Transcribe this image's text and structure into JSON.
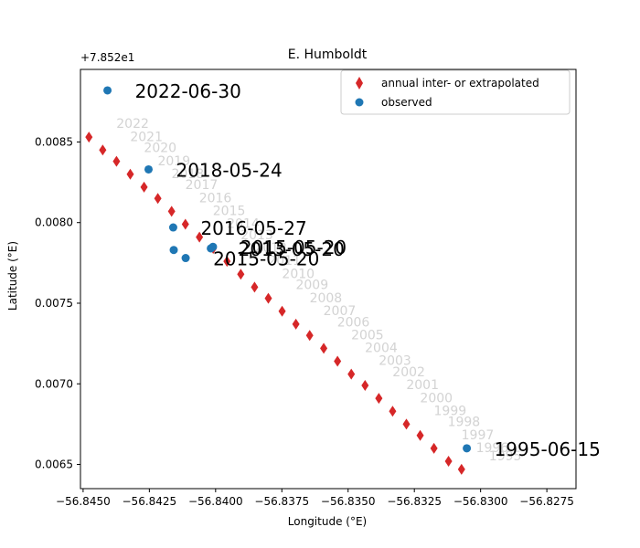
{
  "chart_data": {
    "type": "scatter",
    "title": "E. Humboldt",
    "xlabel": "Longitude (°E)",
    "ylabel": "Latitude (°E)",
    "y_offset_label": "+7.852e1",
    "xlim": [
      -56.8451,
      -56.8264
    ],
    "ylim": [
      0.00635,
      0.00895
    ],
    "xticks": [
      "−56.8450",
      "−56.8425",
      "−56.8400",
      "−56.8375",
      "−56.8350",
      "−56.8325",
      "−56.8300",
      "−56.8275"
    ],
    "xtick_values": [
      -56.845,
      -56.8425,
      -56.84,
      -56.8375,
      -56.835,
      -56.8325,
      -56.83,
      -56.8275
    ],
    "yticks": [
      "0.0065",
      "0.0070",
      "0.0075",
      "0.0080",
      "0.0085"
    ],
    "ytick_values": [
      0.0065,
      0.007,
      0.0075,
      0.008,
      0.0085
    ],
    "grid": false,
    "legend_position": "top-right",
    "series": [
      {
        "name": "annual inter- or extrapolated",
        "marker": "diamond",
        "color": "#d62728",
        "points": [
          {
            "year": "1995",
            "x": -56.83072,
            "y": 0.00647
          },
          {
            "year": "1996",
            "x": -56.83121,
            "y": 0.00652
          },
          {
            "year": "1997",
            "x": -56.83176,
            "y": 0.0066
          },
          {
            "year": "1998",
            "x": -56.83228,
            "y": 0.00668
          },
          {
            "year": "1999",
            "x": -56.8328,
            "y": 0.00675
          },
          {
            "year": "2000",
            "x": -56.83332,
            "y": 0.00683
          },
          {
            "year": "2001",
            "x": -56.83384,
            "y": 0.00691
          },
          {
            "year": "2002",
            "x": -56.83436,
            "y": 0.00699
          },
          {
            "year": "2003",
            "x": -56.83488,
            "y": 0.00706
          },
          {
            "year": "2004",
            "x": -56.8354,
            "y": 0.00714
          },
          {
            "year": "2005",
            "x": -56.83592,
            "y": 0.00722
          },
          {
            "year": "2006",
            "x": -56.83645,
            "y": 0.0073
          },
          {
            "year": "2007",
            "x": -56.83697,
            "y": 0.00737
          },
          {
            "year": "2008",
            "x": -56.83749,
            "y": 0.00745
          },
          {
            "year": "2009",
            "x": -56.83801,
            "y": 0.00753
          },
          {
            "year": "2010",
            "x": -56.83853,
            "y": 0.0076
          },
          {
            "year": "2011",
            "x": -56.83905,
            "y": 0.00768
          },
          {
            "year": "2012",
            "x": -56.83957,
            "y": 0.00776
          },
          {
            "year": "2013",
            "x": -56.84009,
            "y": 0.00784
          },
          {
            "year": "2014",
            "x": -56.84061,
            "y": 0.00791
          },
          {
            "year": "2015",
            "x": -56.84114,
            "y": 0.00799
          },
          {
            "year": "2016",
            "x": -56.84166,
            "y": 0.00807
          },
          {
            "year": "2017",
            "x": -56.84218,
            "y": 0.00815
          },
          {
            "year": "2018",
            "x": -56.8427,
            "y": 0.00822
          },
          {
            "year": "2019",
            "x": -56.84322,
            "y": 0.0083
          },
          {
            "year": "2020",
            "x": -56.84374,
            "y": 0.00838
          },
          {
            "year": "2021",
            "x": -56.84426,
            "y": 0.00845
          },
          {
            "year": "2022",
            "x": -56.84478,
            "y": 0.00853
          }
        ]
      },
      {
        "name": "observed",
        "marker": "circle",
        "color": "#1f77b4",
        "points": [
          {
            "label": "1995-06-15",
            "x": -56.83052,
            "y": 0.0066
          },
          {
            "label": "2013-05-20",
            "x": -56.84018,
            "y": 0.00784
          },
          {
            "label": "2015-05-20",
            "x": -56.8401,
            "y": 0.00785
          },
          {
            "label": "2015-05-20",
            "x": -56.84113,
            "y": 0.00778
          },
          {
            "label": "",
            "x": -56.84158,
            "y": 0.00783
          },
          {
            "label": "2016-05-27",
            "x": -56.8416,
            "y": 0.00797
          },
          {
            "label": "2018-05-24",
            "x": -56.84253,
            "y": 0.00833
          },
          {
            "label": "2022-06-30",
            "x": -56.84408,
            "y": 0.00882
          }
        ]
      }
    ]
  }
}
